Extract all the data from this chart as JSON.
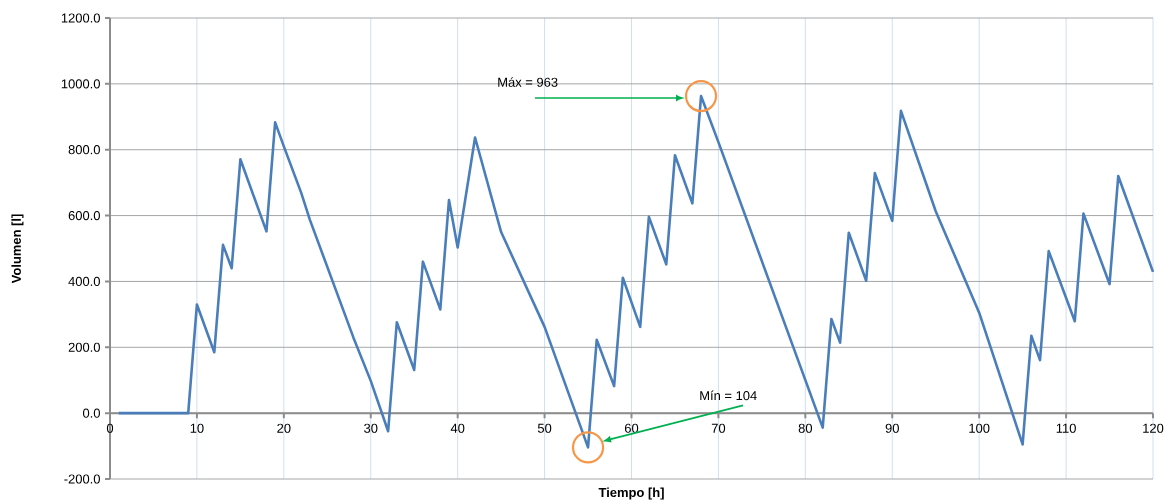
{
  "chart_data": {
    "type": "line",
    "xlabel": "Tiempo [h]",
    "ylabel": "Volumen [l]",
    "x": [
      1,
      9,
      10,
      12,
      13,
      14,
      15,
      18,
      19,
      20,
      22,
      23,
      28,
      30,
      32,
      33,
      35,
      36,
      38,
      39,
      40,
      42,
      45,
      50,
      55,
      56,
      58,
      59,
      61,
      62,
      64,
      65,
      67,
      68,
      70,
      82,
      83,
      84,
      85,
      87,
      88,
      90,
      91,
      95,
      100,
      105,
      106,
      107,
      108,
      111,
      112,
      115,
      116,
      120
    ],
    "series": [
      {
        "color": "#4a7ebb",
        "values": [
          0,
          0,
          330,
          185,
          511,
          440,
          771,
          552,
          883,
          810,
          669,
          587,
          230,
          98,
          -55,
          276,
          131,
          460,
          315,
          647,
          503,
          837,
          550,
          262,
          -104,
          223,
          82,
          411,
          262,
          596,
          452,
          783,
          637,
          963,
          823,
          -44,
          286,
          214,
          548,
          402,
          729,
          584,
          918,
          613,
          305,
          -95,
          235,
          161,
          492,
          279,
          606,
          392,
          720,
          429
        ]
      }
    ],
    "xlim": [
      0,
      120
    ],
    "xticks": [
      0,
      10,
      20,
      30,
      40,
      50,
      60,
      70,
      80,
      90,
      100,
      110,
      120
    ],
    "ylim": [
      -200,
      1200
    ],
    "yticks": [
      {
        "value": -200,
        "label": "-200.0"
      },
      {
        "value": 0,
        "label": "0.0"
      },
      {
        "value": 200,
        "label": "200.0"
      },
      {
        "value": 400,
        "label": "400.0"
      },
      {
        "value": 600,
        "label": "600.0"
      },
      {
        "value": 800,
        "label": "800.0"
      },
      {
        "value": 1000,
        "label": "1000.0"
      },
      {
        "value": 1200,
        "label": "1200.0"
      }
    ],
    "grid": true,
    "marker": "none",
    "line_style": "solid",
    "annotations": [
      "Máx = 963",
      "Mín = 104"
    ]
  }
}
